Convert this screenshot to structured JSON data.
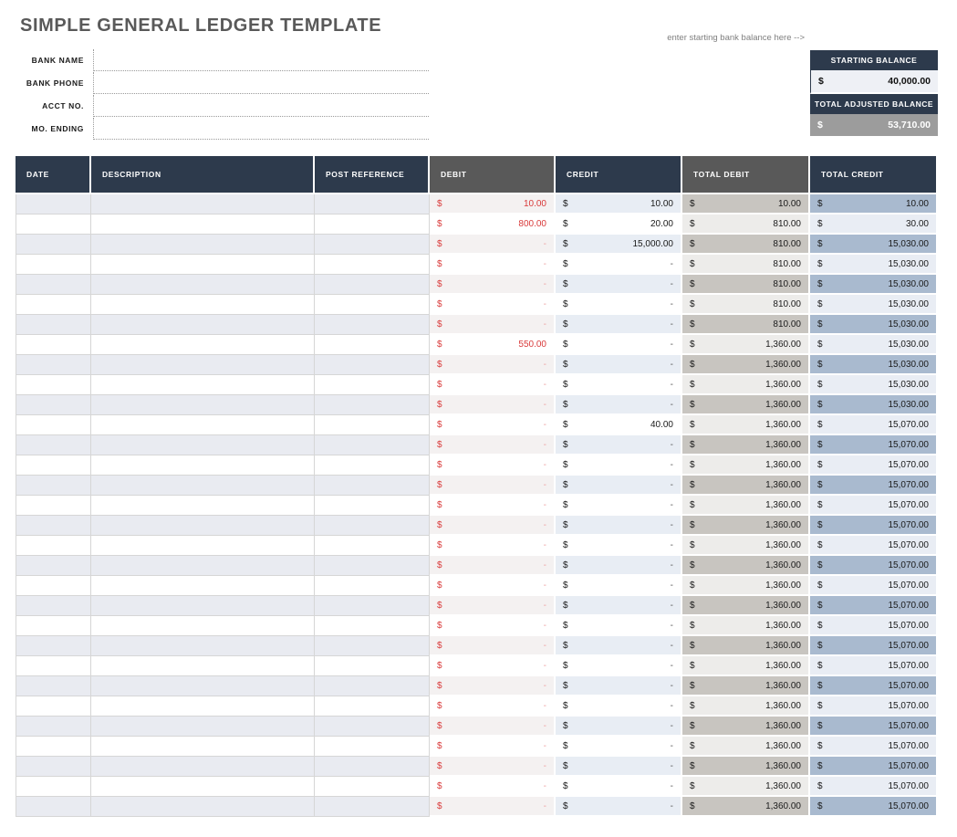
{
  "page": {
    "title": "SIMPLE GENERAL LEDGER TEMPLATE"
  },
  "form": {
    "fields": [
      {
        "label": "BANK NAME",
        "value": ""
      },
      {
        "label": "BANK PHONE",
        "value": ""
      },
      {
        "label": "ACCT NO.",
        "value": ""
      },
      {
        "label": "MO. ENDING",
        "value": ""
      }
    ]
  },
  "balances": {
    "hint": "enter starting bank balance here -->",
    "starting": {
      "header": "STARTING BALANCE",
      "currency": "$",
      "value": "40,000.00"
    },
    "adjusted": {
      "header": "TOTAL ADJUSTED BALANCE",
      "currency": "$",
      "value": "53,710.00"
    }
  },
  "table": {
    "columns": [
      "DATE",
      "DESCRIPTION",
      "POST REFERENCE",
      "DEBIT",
      "CREDIT",
      "TOTAL DEBIT",
      "TOTAL CREDIT"
    ],
    "currency": "$",
    "rows": [
      {
        "date": "",
        "description": "",
        "post_reference": "",
        "debit": "10.00",
        "credit": "10.00",
        "total_debit": "10.00",
        "total_credit": "10.00"
      },
      {
        "date": "",
        "description": "",
        "post_reference": "",
        "debit": "800.00",
        "credit": "20.00",
        "total_debit": "810.00",
        "total_credit": "30.00"
      },
      {
        "date": "",
        "description": "",
        "post_reference": "",
        "debit": "-",
        "credit": "15,000.00",
        "total_debit": "810.00",
        "total_credit": "15,030.00"
      },
      {
        "date": "",
        "description": "",
        "post_reference": "",
        "debit": "-",
        "credit": "-",
        "total_debit": "810.00",
        "total_credit": "15,030.00"
      },
      {
        "date": "",
        "description": "",
        "post_reference": "",
        "debit": "-",
        "credit": "-",
        "total_debit": "810.00",
        "total_credit": "15,030.00"
      },
      {
        "date": "",
        "description": "",
        "post_reference": "",
        "debit": "-",
        "credit": "-",
        "total_debit": "810.00",
        "total_credit": "15,030.00"
      },
      {
        "date": "",
        "description": "",
        "post_reference": "",
        "debit": "-",
        "credit": "-",
        "total_debit": "810.00",
        "total_credit": "15,030.00"
      },
      {
        "date": "",
        "description": "",
        "post_reference": "",
        "debit": "550.00",
        "credit": "-",
        "total_debit": "1,360.00",
        "total_credit": "15,030.00"
      },
      {
        "date": "",
        "description": "",
        "post_reference": "",
        "debit": "-",
        "credit": "-",
        "total_debit": "1,360.00",
        "total_credit": "15,030.00"
      },
      {
        "date": "",
        "description": "",
        "post_reference": "",
        "debit": "-",
        "credit": "-",
        "total_debit": "1,360.00",
        "total_credit": "15,030.00"
      },
      {
        "date": "",
        "description": "",
        "post_reference": "",
        "debit": "-",
        "credit": "-",
        "total_debit": "1,360.00",
        "total_credit": "15,030.00"
      },
      {
        "date": "",
        "description": "",
        "post_reference": "",
        "debit": "-",
        "credit": "40.00",
        "total_debit": "1,360.00",
        "total_credit": "15,070.00"
      },
      {
        "date": "",
        "description": "",
        "post_reference": "",
        "debit": "-",
        "credit": "-",
        "total_debit": "1,360.00",
        "total_credit": "15,070.00"
      },
      {
        "date": "",
        "description": "",
        "post_reference": "",
        "debit": "-",
        "credit": "-",
        "total_debit": "1,360.00",
        "total_credit": "15,070.00"
      },
      {
        "date": "",
        "description": "",
        "post_reference": "",
        "debit": "-",
        "credit": "-",
        "total_debit": "1,360.00",
        "total_credit": "15,070.00"
      },
      {
        "date": "",
        "description": "",
        "post_reference": "",
        "debit": "-",
        "credit": "-",
        "total_debit": "1,360.00",
        "total_credit": "15,070.00"
      },
      {
        "date": "",
        "description": "",
        "post_reference": "",
        "debit": "-",
        "credit": "-",
        "total_debit": "1,360.00",
        "total_credit": "15,070.00"
      },
      {
        "date": "",
        "description": "",
        "post_reference": "",
        "debit": "-",
        "credit": "-",
        "total_debit": "1,360.00",
        "total_credit": "15,070.00"
      },
      {
        "date": "",
        "description": "",
        "post_reference": "",
        "debit": "-",
        "credit": "-",
        "total_debit": "1,360.00",
        "total_credit": "15,070.00"
      },
      {
        "date": "",
        "description": "",
        "post_reference": "",
        "debit": "-",
        "credit": "-",
        "total_debit": "1,360.00",
        "total_credit": "15,070.00"
      },
      {
        "date": "",
        "description": "",
        "post_reference": "",
        "debit": "-",
        "credit": "-",
        "total_debit": "1,360.00",
        "total_credit": "15,070.00"
      },
      {
        "date": "",
        "description": "",
        "post_reference": "",
        "debit": "-",
        "credit": "-",
        "total_debit": "1,360.00",
        "total_credit": "15,070.00"
      },
      {
        "date": "",
        "description": "",
        "post_reference": "",
        "debit": "-",
        "credit": "-",
        "total_debit": "1,360.00",
        "total_credit": "15,070.00"
      },
      {
        "date": "",
        "description": "",
        "post_reference": "",
        "debit": "-",
        "credit": "-",
        "total_debit": "1,360.00",
        "total_credit": "15,070.00"
      },
      {
        "date": "",
        "description": "",
        "post_reference": "",
        "debit": "-",
        "credit": "-",
        "total_debit": "1,360.00",
        "total_credit": "15,070.00"
      },
      {
        "date": "",
        "description": "",
        "post_reference": "",
        "debit": "-",
        "credit": "-",
        "total_debit": "1,360.00",
        "total_credit": "15,070.00"
      },
      {
        "date": "",
        "description": "",
        "post_reference": "",
        "debit": "-",
        "credit": "-",
        "total_debit": "1,360.00",
        "total_credit": "15,070.00"
      },
      {
        "date": "",
        "description": "",
        "post_reference": "",
        "debit": "-",
        "credit": "-",
        "total_debit": "1,360.00",
        "total_credit": "15,070.00"
      },
      {
        "date": "",
        "description": "",
        "post_reference": "",
        "debit": "-",
        "credit": "-",
        "total_debit": "1,360.00",
        "total_credit": "15,070.00"
      },
      {
        "date": "",
        "description": "",
        "post_reference": "",
        "debit": "-",
        "credit": "-",
        "total_debit": "1,360.00",
        "total_credit": "15,070.00"
      },
      {
        "date": "",
        "description": "",
        "post_reference": "",
        "debit": "-",
        "credit": "-",
        "total_debit": "1,360.00",
        "total_credit": "15,070.00"
      }
    ]
  },
  "colors": {
    "navy_header": "#2d3a4c",
    "gray_header": "#595959",
    "debit_red": "#d93a3a",
    "adjusted_bg": "#9c9c9c",
    "tint_row": "#e9ebf1",
    "total_debit_tint": "#c8c5c0",
    "total_credit_tint": "#a9bacf"
  }
}
